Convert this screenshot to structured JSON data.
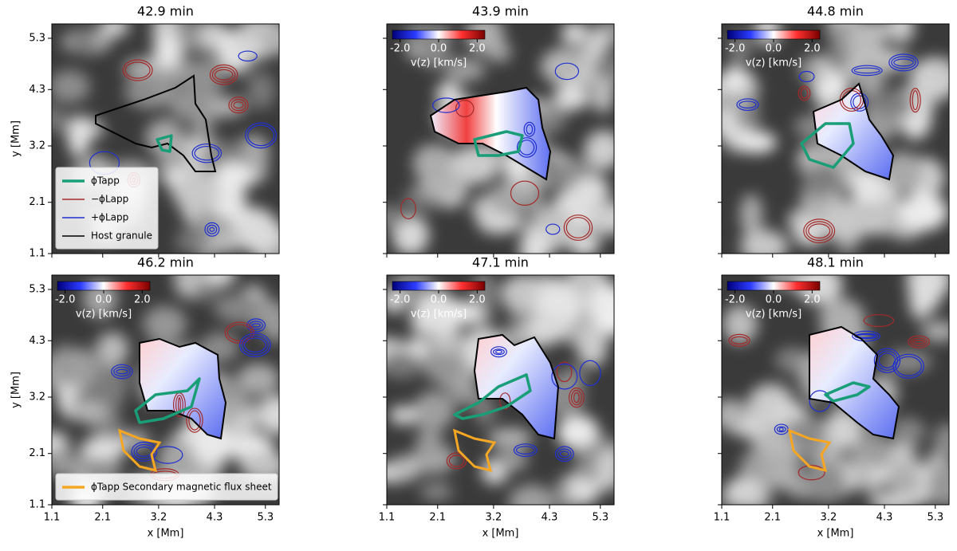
{
  "chart_data": [
    {
      "type": "image",
      "title": "42.9 min",
      "xlim": [
        1.1,
        5.57
      ],
      "ylim": [
        1.1,
        5.58
      ],
      "xticks": [
        1.1,
        2.1,
        3.2,
        4.3,
        5.3
      ],
      "yticks": [
        1.1,
        2.1,
        3.2,
        4.3,
        5.3
      ],
      "ylabel": "y [Mm]",
      "legend": {
        "loc": "lower left",
        "entries": [
          {
            "label": "ϕTapp",
            "color": "#1a9e77"
          },
          {
            "label": "−ϕLapp",
            "color": "#a52a2a"
          },
          {
            "label": "+ϕLapp",
            "color": "#1f2fd0"
          },
          {
            "label": "Host granule",
            "color": "#000000"
          }
        ]
      }
    },
    {
      "type": "image",
      "title": "43.9 min",
      "xlim": [
        1.1,
        5.57
      ],
      "ylim": [
        1.1,
        5.58
      ],
      "xticks": [
        1.1,
        2.1,
        3.2,
        4.3,
        5.3
      ],
      "yticks": [
        1.1,
        2.1,
        3.2,
        4.3,
        5.3
      ],
      "colorbar": {
        "clim": [
          -2.4,
          2.4
        ],
        "ticks": [
          {
            "value": -2,
            "label": "-2.0"
          },
          {
            "value": 0,
            "label": "0.0"
          },
          {
            "value": 2,
            "label": "2.0"
          }
        ],
        "label": "v(z) [km/s]"
      }
    },
    {
      "type": "image",
      "title": "44.8 min",
      "xlim": [
        1.1,
        5.57
      ],
      "ylim": [
        1.1,
        5.58
      ],
      "xticks": [
        1.1,
        2.1,
        3.2,
        4.3,
        5.3
      ],
      "yticks": [
        1.1,
        2.1,
        3.2,
        4.3,
        5.3
      ],
      "colorbar": {
        "clim": [
          -2.4,
          2.4
        ],
        "ticks": [
          {
            "value": -2,
            "label": "-2.0"
          },
          {
            "value": 0,
            "label": "0.0"
          },
          {
            "value": 2,
            "label": "2.0"
          }
        ],
        "label": "v(z) [km/s]"
      }
    },
    {
      "type": "image",
      "title": "46.2 min",
      "xlim": [
        1.1,
        5.57
      ],
      "ylim": [
        1.1,
        5.58
      ],
      "xticks": [
        1.1,
        2.1,
        3.2,
        4.3,
        5.3
      ],
      "yticks": [
        1.1,
        2.1,
        3.2,
        4.3,
        5.3
      ],
      "xlabel": "x [Mm]",
      "ylabel": "y [Mm]",
      "colorbar": {
        "clim": [
          -2.4,
          2.4
        ],
        "ticks": [
          {
            "value": -2,
            "label": "-2.0"
          },
          {
            "value": 0,
            "label": "0.0"
          },
          {
            "value": 2,
            "label": "2.0"
          }
        ],
        "label": "v(z) [km/s]"
      },
      "legend": {
        "loc": "lower left",
        "entries": [
          {
            "label": "ϕTapp Secondary magnetic flux sheet",
            "color": "#f5a623"
          }
        ]
      }
    },
    {
      "type": "image",
      "title": "47.1 min",
      "xlim": [
        1.1,
        5.57
      ],
      "ylim": [
        1.1,
        5.58
      ],
      "xticks": [
        1.1,
        2.1,
        3.2,
        4.3,
        5.3
      ],
      "yticks": [
        1.1,
        2.1,
        3.2,
        4.3,
        5.3
      ],
      "xlabel": "x [Mm]",
      "colorbar": {
        "clim": [
          -2.4,
          2.4
        ],
        "ticks": [
          {
            "value": -2,
            "label": "-2.0"
          },
          {
            "value": 0,
            "label": "0.0"
          },
          {
            "value": 2,
            "label": "2.0"
          }
        ],
        "label": "v(z) [km/s]"
      }
    },
    {
      "type": "image",
      "title": "48.1 min",
      "xlim": [
        1.1,
        5.57
      ],
      "ylim": [
        1.1,
        5.58
      ],
      "xticks": [
        1.1,
        2.1,
        3.2,
        4.3,
        5.3
      ],
      "yticks": [
        1.1,
        2.1,
        3.2,
        4.3,
        5.3
      ],
      "xlabel": "x [Mm]",
      "colorbar": {
        "clim": [
          -2.4,
          2.4
        ],
        "ticks": [
          {
            "value": -2,
            "label": "-2.0"
          },
          {
            "value": 0,
            "label": "0.0"
          },
          {
            "value": 2,
            "label": "2.0"
          }
        ],
        "label": "v(z) [km/s]"
      }
    }
  ]
}
